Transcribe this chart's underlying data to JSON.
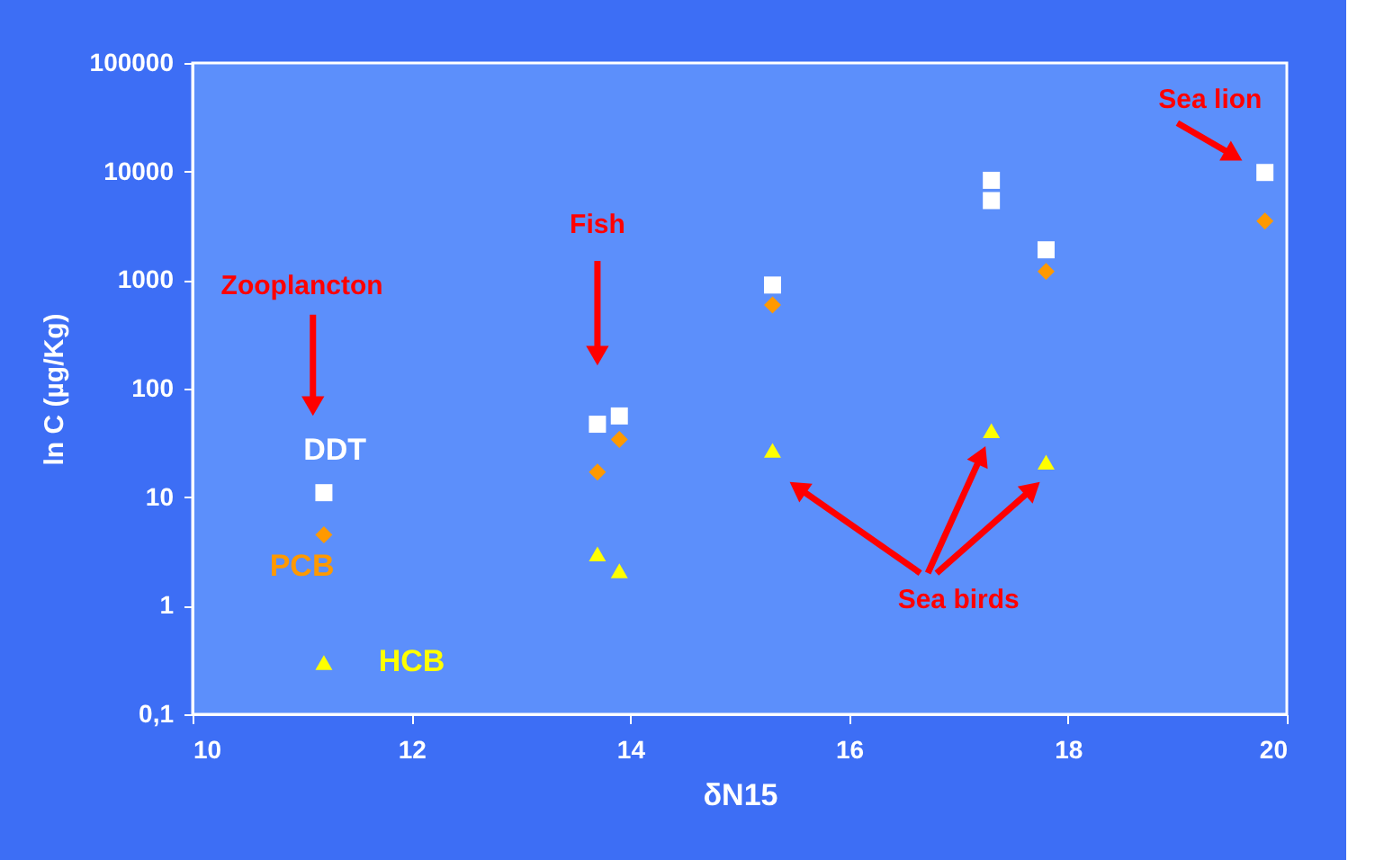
{
  "chart_data": {
    "type": "scatter",
    "xlabel": "δN15",
    "ylabel": "ln C (µg/Kg)",
    "xlim": [
      10,
      20
    ],
    "xticks": [
      10,
      12,
      14,
      16,
      18,
      20
    ],
    "ylim": [
      0.1,
      100000
    ],
    "yticks": [
      {
        "value": 0.1,
        "label": "0,1"
      },
      1,
      10,
      100,
      1000,
      10000,
      100000
    ],
    "log": "y",
    "grid": false,
    "series": [
      {
        "name": "DDT",
        "color": "#ffffff",
        "marker": "square",
        "x": [
          11.2,
          13.7,
          13.9,
          15.3,
          17.3,
          17.3,
          17.8,
          19.8
        ],
        "values": [
          11,
          47,
          56,
          900,
          8300,
          5400,
          1900,
          9800
        ]
      },
      {
        "name": "PCB",
        "color": "#ff9900",
        "marker": "diamond",
        "x": [
          11.2,
          13.7,
          13.9,
          15.3,
          17.8,
          19.8
        ],
        "values": [
          4.5,
          17,
          34,
          590,
          1200,
          3500
        ]
      },
      {
        "name": "HCB",
        "color": "#ffff00",
        "marker": "triangle",
        "x": [
          11.2,
          13.7,
          13.9,
          15.3,
          17.3,
          17.8
        ],
        "values": [
          0.3,
          3.0,
          2.1,
          27,
          41,
          21
        ]
      }
    ],
    "annotations": [
      "Zooplancton",
      "Fish",
      "Sea lion",
      "Sea birds"
    ]
  }
}
